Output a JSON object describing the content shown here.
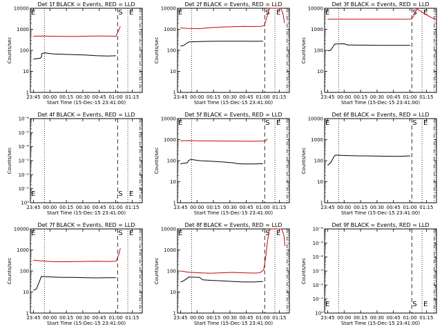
{
  "chart_data": [
    {
      "type": "line",
      "title": "Det 1f BLACK = Events, RED = LLD",
      "xlabel": "Start Time (15-Dec-15 23:41:00)",
      "ylabel": "Counts/sec",
      "x_tick_labels": [
        "23:45",
        "00:00",
        "00:15",
        "00:30",
        "00:45",
        "01:00",
        "01:15"
      ],
      "y_tick_labels": [
        "1",
        "10",
        "100",
        "1000",
        "10000"
      ],
      "log_y": true,
      "ylim": [
        1,
        10000
      ],
      "markers": [
        "S",
        "E"
      ],
      "series": [
        {
          "color": "#000000",
          "points": [
            [
              0.28,
              38
            ],
            [
              0.55,
              40
            ],
            [
              0.9,
              42
            ],
            [
              1.0,
              48
            ],
            [
              1.05,
              72
            ],
            [
              1.4,
              75
            ],
            [
              2,
              68
            ],
            [
              3,
              65
            ],
            [
              4,
              62
            ],
            [
              5,
              60
            ],
            [
              6,
              56
            ],
            [
              7,
              54
            ],
            [
              7.8,
              55
            ]
          ]
        },
        {
          "color": "#cc0000",
          "points": [
            [
              0.28,
              470
            ],
            [
              1,
              480
            ],
            [
              2,
              470
            ],
            [
              3,
              460
            ],
            [
              4,
              455
            ],
            [
              5,
              470
            ],
            [
              6,
              480
            ],
            [
              7,
              480
            ],
            [
              7.8,
              470
            ],
            [
              8.05,
              900
            ],
            [
              8.2,
              1400
            ]
          ]
        }
      ]
    },
    {
      "type": "line",
      "title": "Det 2f BLACK = Events, RED = LLD",
      "xlabel": "Start Time (15-Dec-15 23:41:00)",
      "ylabel": "Counts/sec",
      "x_tick_labels": [
        "23:45",
        "00:00",
        "00:15",
        "00:30",
        "00:45",
        "01:00",
        "01:15"
      ],
      "y_tick_labels": [
        "1",
        "10",
        "100",
        "1000",
        "10000"
      ],
      "log_y": true,
      "ylim": [
        1,
        10000
      ],
      "markers": [
        "S",
        "E"
      ],
      "series": [
        {
          "color": "#000000",
          "points": [
            [
              0.28,
              160
            ],
            [
              0.55,
              170
            ],
            [
              0.9,
              230
            ],
            [
              1,
              250
            ],
            [
              2,
              262
            ],
            [
              3,
              268
            ],
            [
              4,
              272
            ],
            [
              5,
              272
            ],
            [
              6,
              270
            ],
            [
              7,
              268
            ],
            [
              7.8,
              270
            ]
          ]
        },
        {
          "color": "#cc0000",
          "points": [
            [
              0.28,
              1150
            ],
            [
              1,
              1100
            ],
            [
              2,
              1080
            ],
            [
              3,
              1200
            ],
            [
              4,
              1280
            ],
            [
              5,
              1320
            ],
            [
              6,
              1380
            ],
            [
              7,
              1350
            ],
            [
              7.6,
              1380
            ],
            [
              7.9,
              1500
            ],
            [
              8.1,
              3000
            ],
            [
              8.25,
              6000
            ],
            [
              8.4,
              10000
            ],
            [
              9.4,
              10000
            ],
            [
              9.6,
              6000
            ],
            [
              9.75,
              2000
            ]
          ]
        }
      ]
    },
    {
      "type": "line",
      "title": "Det 3f BLACK = Events, RED = LLD",
      "xlabel": "Start Time (15-Dec-15 23:41:00)",
      "ylabel": "Counts/sec",
      "x_tick_labels": [
        "23:45",
        "00:00",
        "00:15",
        "00:30",
        "00:45",
        "01:00",
        "01:15"
      ],
      "y_tick_labels": [
        "1",
        "10",
        "100",
        "1000",
        "10000"
      ],
      "log_y": true,
      "ylim": [
        1,
        10000
      ],
      "markers": [
        "S",
        "E"
      ],
      "series": [
        {
          "color": "#000000",
          "points": [
            [
              0.28,
              95
            ],
            [
              0.55,
              100
            ],
            [
              0.9,
              190
            ],
            [
              1,
              200
            ],
            [
              1.8,
              205
            ],
            [
              2.1,
              180
            ],
            [
              3,
              178
            ],
            [
              4,
              176
            ],
            [
              5,
              174
            ],
            [
              6,
              172
            ],
            [
              7,
              172
            ],
            [
              7.8,
              174
            ]
          ]
        },
        {
          "color": "#cc0000",
          "points": [
            [
              0.28,
              3000
            ],
            [
              1,
              3000
            ],
            [
              2,
              3000
            ],
            [
              3,
              3000
            ],
            [
              4,
              3000
            ],
            [
              5,
              3000
            ],
            [
              6,
              3000
            ],
            [
              7,
              3000
            ],
            [
              7.85,
              3050
            ],
            [
              8.1,
              4000
            ],
            [
              8.3,
              7000
            ],
            [
              8.45,
              9500
            ],
            [
              8.6,
              8000
            ],
            [
              9,
              6000
            ],
            [
              9.4,
              4500
            ],
            [
              9.8,
              3500
            ],
            [
              10.1,
              3000
            ]
          ]
        }
      ]
    },
    {
      "type": "line",
      "title": "Det 4f BLACK = Events, RED = LLD",
      "xlabel": "Start Time (15-Dec-15 23:41:00)",
      "ylabel": "Counts/sec",
      "x_tick_labels": [
        "23:45",
        "00:00",
        "00:15",
        "00:30",
        "00:45",
        "01:00",
        "01:15"
      ],
      "y_tick_labels": [
        "10⁰",
        "10⁻¹",
        "10⁻²",
        "10⁻³",
        "10⁻⁴",
        "10⁻⁵",
        "10⁻⁶"
      ],
      "log_y": true,
      "markers": [
        "S",
        "E"
      ],
      "series": []
    },
    {
      "type": "line",
      "title": "Det 5f BLACK = Events, RED = LLD",
      "xlabel": "Start Time (15-Dec-15 23:41:00)",
      "ylabel": "Counts/sec",
      "x_tick_labels": [
        "23:45",
        "00:00",
        "00:15",
        "00:30",
        "00:45",
        "01:00",
        "01:15"
      ],
      "y_tick_labels": [
        "1",
        "10",
        "100",
        "1000",
        "10000"
      ],
      "log_y": true,
      "ylim": [
        1,
        10000
      ],
      "markers": [
        "S",
        "E"
      ],
      "series": [
        {
          "color": "#000000",
          "points": [
            [
              0.28,
              70
            ],
            [
              0.55,
              75
            ],
            [
              0.9,
              80
            ],
            [
              1,
              100
            ],
            [
              1.2,
              115
            ],
            [
              2,
              100
            ],
            [
              3,
              95
            ],
            [
              4,
              88
            ],
            [
              5,
              80
            ],
            [
              5.5,
              72
            ],
            [
              6,
              70
            ],
            [
              7,
              70
            ],
            [
              7.8,
              72
            ]
          ]
        },
        {
          "color": "#cc0000",
          "points": [
            [
              0.28,
              880
            ],
            [
              1,
              900
            ],
            [
              2,
              880
            ],
            [
              3,
              870
            ],
            [
              4,
              860
            ],
            [
              5,
              860
            ],
            [
              6,
              850
            ],
            [
              7,
              850
            ],
            [
              7.8,
              860
            ],
            [
              8.05,
              900
            ],
            [
              8.2,
              1100
            ]
          ]
        }
      ]
    },
    {
      "type": "line",
      "title": "Det 6f BLACK = Events, RED = LLD",
      "xlabel": "Start Time (15-Dec-15 23:41:00)",
      "ylabel": "Counts/sec",
      "x_tick_labels": [
        "23:45",
        "00:00",
        "00:15",
        "00:30",
        "00:45",
        "01:00",
        "01:15"
      ],
      "y_tick_labels": [
        "1",
        "10",
        "100",
        "1000",
        "10000"
      ],
      "log_y": true,
      "ylim": [
        1,
        10000
      ],
      "markers": [
        "S",
        "E"
      ],
      "series": [
        {
          "color": "#000000",
          "points": [
            [
              0.28,
              60
            ],
            [
              0.55,
              80
            ],
            [
              0.9,
              170
            ],
            [
              1,
              185
            ],
            [
              2,
              175
            ],
            [
              3,
              170
            ],
            [
              4,
              168
            ],
            [
              5,
              165
            ],
            [
              6,
              162
            ],
            [
              7,
              162
            ],
            [
              7.8,
              170
            ]
          ]
        }
      ]
    },
    {
      "type": "line",
      "title": "Det 7f BLACK = Events, RED = LLD",
      "xlabel": "Start Time (15-Dec-15 23:41:00)",
      "ylabel": "Counts/sec",
      "x_tick_labels": [
        "23:45",
        "00:00",
        "00:15",
        "00:30",
        "00:45",
        "01:00",
        "01:15"
      ],
      "y_tick_labels": [
        "1",
        "10",
        "100",
        "1000",
        "10000"
      ],
      "log_y": true,
      "ylim": [
        1,
        10000
      ],
      "markers": [
        "S",
        "E"
      ],
      "series": [
        {
          "color": "#000000",
          "points": [
            [
              0.28,
              12
            ],
            [
              0.55,
              14
            ],
            [
              0.9,
              40
            ],
            [
              1,
              55
            ],
            [
              2,
              52
            ],
            [
              3,
              50
            ],
            [
              4,
              50
            ],
            [
              5,
              48
            ],
            [
              6,
              47
            ],
            [
              7,
              48
            ],
            [
              7.8,
              48
            ]
          ]
        },
        {
          "color": "#cc0000",
          "points": [
            [
              0.28,
              330
            ],
            [
              1,
              300
            ],
            [
              2,
              280
            ],
            [
              3,
              275
            ],
            [
              4,
              280
            ],
            [
              5,
              285
            ],
            [
              6,
              290
            ],
            [
              7,
              285
            ],
            [
              7.8,
              290
            ],
            [
              8.05,
              600
            ],
            [
              8.2,
              1200
            ]
          ]
        }
      ]
    },
    {
      "type": "line",
      "title": "Det 8f BLACK = Events, RED = LLD",
      "xlabel": "Start Time (15-Dec-15 23:41:00)",
      "ylabel": "Counts/sec",
      "x_tick_labels": [
        "23:45",
        "00:00",
        "00:15",
        "00:30",
        "00:45",
        "01:00",
        "01:15"
      ],
      "y_tick_labels": [
        "1",
        "10",
        "100",
        "1000",
        "10000"
      ],
      "log_y": true,
      "ylim": [
        1,
        10000
      ],
      "markers": [
        "S",
        "E"
      ],
      "series": [
        {
          "color": "#000000",
          "points": [
            [
              0.28,
              30
            ],
            [
              0.55,
              34
            ],
            [
              0.9,
              45
            ],
            [
              1,
              52
            ],
            [
              2,
              50
            ],
            [
              2.3,
              38
            ],
            [
              3,
              36
            ],
            [
              4,
              34
            ],
            [
              5,
              32
            ],
            [
              6,
              30
            ],
            [
              7,
              30
            ],
            [
              7.8,
              32
            ]
          ]
        },
        {
          "color": "#cc0000",
          "points": [
            [
              0.28,
              100
            ],
            [
              1,
              88
            ],
            [
              2,
              82
            ],
            [
              3,
              78
            ],
            [
              4,
              82
            ],
            [
              5,
              86
            ],
            [
              6,
              82
            ],
            [
              7,
              80
            ],
            [
              7.5,
              82
            ],
            [
              7.85,
              110
            ],
            [
              8.05,
              500
            ],
            [
              8.2,
              2500
            ],
            [
              8.35,
              8000
            ],
            [
              8.5,
              10000
            ],
            [
              9.5,
              10000
            ],
            [
              9.7,
              5000
            ],
            [
              9.8,
              1500
            ]
          ]
        }
      ]
    },
    {
      "type": "line",
      "title": "Det 9f BLACK = Events, RED = LLD",
      "xlabel": "Start Time (15-Dec-15 23:41:00)",
      "ylabel": "Counts/sec",
      "x_tick_labels": [
        "23:45",
        "00:00",
        "00:15",
        "00:30",
        "00:45",
        "01:00",
        "01:15"
      ],
      "y_tick_labels": [
        "10⁰",
        "10⁻¹",
        "10⁻²",
        "10⁻³",
        "10⁻⁴",
        "10⁻⁵",
        "10⁻⁶"
      ],
      "log_y": true,
      "markers": [
        "S",
        "E"
      ],
      "series": []
    }
  ]
}
